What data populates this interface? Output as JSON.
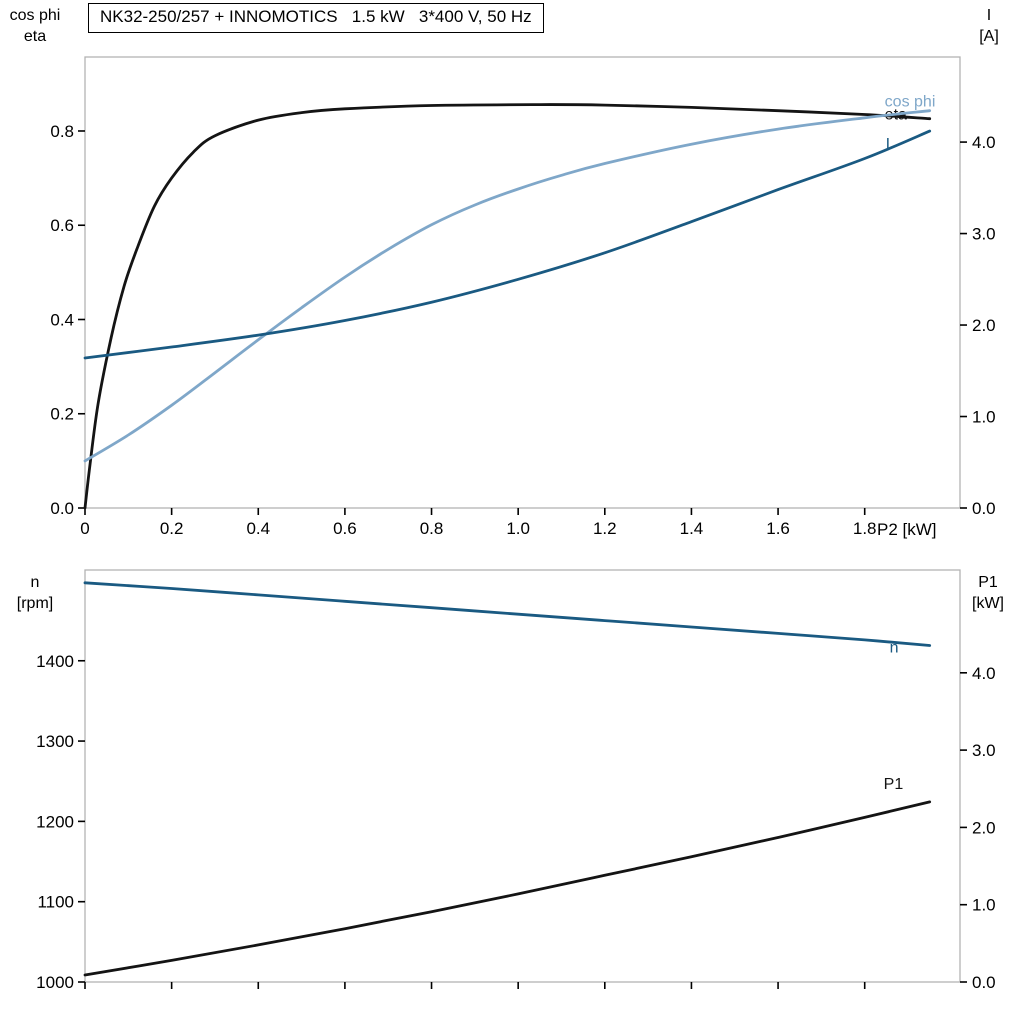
{
  "colors": {
    "frame": "#b3b3b3",
    "tick": "#000000",
    "black": "#141414",
    "dark_blue": "#1a5a82",
    "light_blue": "#7fa7c9"
  },
  "chart_data": [
    {
      "type": "line",
      "title": "NK32-250/257 + INNOMOTICS   1.5 kW   3*400 V, 50 Hz",
      "x_label": "P2 [kW]",
      "x_range": [
        0,
        2.02
      ],
      "x_ticks": [
        "0",
        "0.2",
        "0.4",
        "0.6",
        "0.8",
        "1.0",
        "1.2",
        "1.4",
        "1.6",
        "1.8"
      ],
      "left_axis": {
        "label": "cos phi\neta",
        "range": [
          0,
          0.957
        ],
        "ticks": [
          "0.0",
          "0.2",
          "0.4",
          "0.6",
          "0.8"
        ]
      },
      "right_axis": {
        "label": "I\n[A]",
        "range": [
          0,
          4.93
        ],
        "ticks": [
          "0.0",
          "1.0",
          "2.0",
          "3.0",
          "4.0"
        ]
      },
      "series": [
        {
          "id": "eta",
          "label": "eta",
          "axis": "left",
          "color": "black",
          "label_dx": -45,
          "label_dy": 1,
          "points": [
            [
              0,
              0
            ],
            [
              0.01,
              0.08
            ],
            [
              0.03,
              0.22
            ],
            [
              0.06,
              0.36
            ],
            [
              0.09,
              0.47
            ],
            [
              0.12,
              0.55
            ],
            [
              0.16,
              0.64
            ],
            [
              0.2,
              0.7
            ],
            [
              0.25,
              0.755
            ],
            [
              0.3,
              0.79
            ],
            [
              0.4,
              0.823
            ],
            [
              0.5,
              0.839
            ],
            [
              0.6,
              0.847
            ],
            [
              0.8,
              0.854
            ],
            [
              1.05,
              0.856
            ],
            [
              1.2,
              0.855
            ],
            [
              1.4,
              0.85
            ],
            [
              1.6,
              0.843
            ],
            [
              1.8,
              0.835
            ],
            [
              1.95,
              0.826
            ]
          ]
        },
        {
          "id": "cos-phi",
          "label": "cos phi",
          "axis": "left",
          "color": "light_blue",
          "label_dx": -45,
          "label_dy": -4,
          "points": [
            [
              0,
              0.1
            ],
            [
              0.1,
              0.155
            ],
            [
              0.2,
              0.218
            ],
            [
              0.3,
              0.287
            ],
            [
              0.4,
              0.357
            ],
            [
              0.5,
              0.425
            ],
            [
              0.6,
              0.49
            ],
            [
              0.7,
              0.549
            ],
            [
              0.8,
              0.601
            ],
            [
              0.9,
              0.643
            ],
            [
              1.0,
              0.677
            ],
            [
              1.1,
              0.706
            ],
            [
              1.2,
              0.731
            ],
            [
              1.4,
              0.772
            ],
            [
              1.6,
              0.804
            ],
            [
              1.8,
              0.828
            ],
            [
              1.95,
              0.843
            ]
          ]
        },
        {
          "id": "current",
          "label": "I",
          "axis": "right",
          "color": "dark_blue",
          "label_dx": -44,
          "label_dy": 18,
          "points": [
            [
              0,
              1.64
            ],
            [
              0.2,
              1.76
            ],
            [
              0.4,
              1.89
            ],
            [
              0.6,
              2.05
            ],
            [
              0.8,
              2.25
            ],
            [
              1.0,
              2.5
            ],
            [
              1.2,
              2.79
            ],
            [
              1.4,
              3.13
            ],
            [
              1.6,
              3.48
            ],
            [
              1.8,
              3.82
            ],
            [
              1.95,
              4.12
            ]
          ]
        }
      ]
    },
    {
      "type": "line",
      "title": "",
      "x_label": "",
      "x_range": [
        0,
        2.02
      ],
      "x_ticks": [
        "0",
        "0.2",
        "0.4",
        "0.6",
        "0.8",
        "1.0",
        "1.2",
        "1.4",
        "1.6",
        "1.8"
      ],
      "left_axis": {
        "label": "n\n[rpm]",
        "range": [
          1000,
          1513
        ],
        "ticks": [
          "1000",
          "1100",
          "1200",
          "1300",
          "1400"
        ]
      },
      "right_axis": {
        "label": "P1\n[kW]",
        "range": [
          0,
          5.33
        ],
        "ticks": [
          "0.0",
          "1.0",
          "2.0",
          "3.0",
          "4.0"
        ]
      },
      "series": [
        {
          "id": "speed",
          "label": "n",
          "axis": "left",
          "color": "dark_blue",
          "label_dx": -40,
          "label_dy": 7,
          "points": [
            [
              0,
              1497
            ],
            [
              0.2,
              1490
            ],
            [
              0.4,
              1482
            ],
            [
              0.6,
              1474
            ],
            [
              0.8,
              1466
            ],
            [
              1.0,
              1458
            ],
            [
              1.2,
              1450
            ],
            [
              1.4,
              1442
            ],
            [
              1.6,
              1434
            ],
            [
              1.8,
              1426
            ],
            [
              1.95,
              1419
            ]
          ]
        },
        {
          "id": "p1",
          "label": "P1",
          "axis": "right",
          "color": "black",
          "label_dx": -46,
          "label_dy": -13,
          "points": [
            [
              0,
              0.09
            ],
            [
              0.2,
              0.28
            ],
            [
              0.4,
              0.48
            ],
            [
              0.6,
              0.69
            ],
            [
              0.8,
              0.91
            ],
            [
              1.0,
              1.14
            ],
            [
              1.2,
              1.38
            ],
            [
              1.4,
              1.62
            ],
            [
              1.6,
              1.87
            ],
            [
              1.8,
              2.13
            ],
            [
              1.95,
              2.33
            ]
          ]
        }
      ]
    }
  ]
}
